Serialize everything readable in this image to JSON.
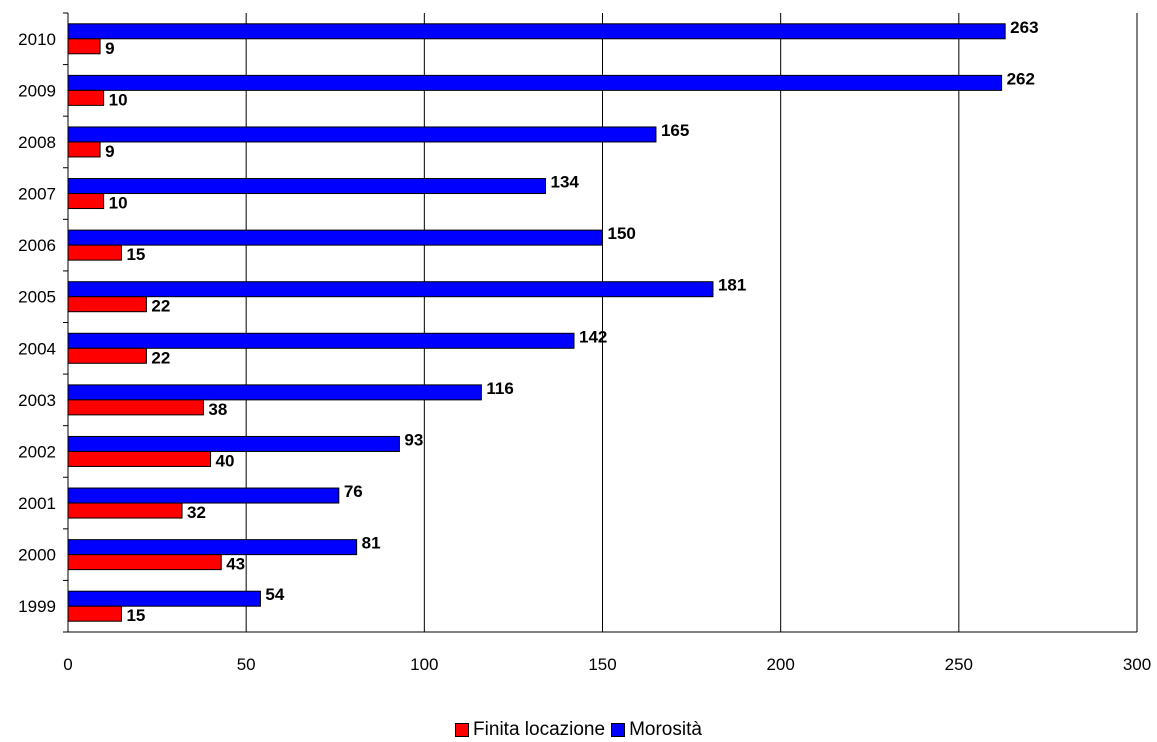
{
  "chart_data": {
    "type": "bar",
    "orientation": "horizontal",
    "categories": [
      "1999",
      "2000",
      "2001",
      "2002",
      "2003",
      "2004",
      "2005",
      "2006",
      "2007",
      "2008",
      "2009",
      "2010"
    ],
    "series": [
      {
        "name": "Finita locazione",
        "color": "#ff0000",
        "values": [
          15,
          43,
          32,
          40,
          38,
          22,
          22,
          15,
          10,
          9,
          10,
          9
        ]
      },
      {
        "name": "Morosità",
        "color": "#0000ff",
        "values": [
          54,
          81,
          76,
          93,
          116,
          142,
          181,
          150,
          134,
          165,
          262,
          263
        ]
      }
    ],
    "xlim": [
      0,
      300
    ],
    "xticks": [
      "0",
      "50",
      "100",
      "150",
      "200",
      "250",
      "300"
    ],
    "grid": true,
    "legend_position": "bottom",
    "title": "",
    "xlabel": "",
    "ylabel": ""
  }
}
